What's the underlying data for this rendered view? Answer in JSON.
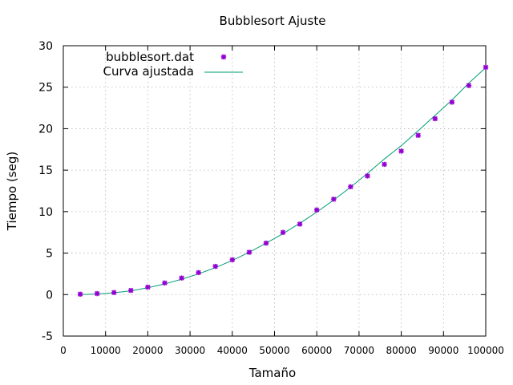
{
  "chart_data": {
    "type": "scatter",
    "title": "Bubblesort Ajuste",
    "xlabel": "Tamaño",
    "ylabel": "Tiempo (seg)",
    "xlim": [
      0,
      100000
    ],
    "ylim": [
      -5,
      30
    ],
    "xticks": [
      "0",
      "10000",
      "20000",
      "30000",
      "40000",
      "50000",
      "60000",
      "70000",
      "80000",
      "90000",
      "100000"
    ],
    "yticks": [
      "-5",
      "0",
      "5",
      "10",
      "15",
      "20",
      "25",
      "30"
    ],
    "grid": true,
    "legend_position": "top-left",
    "series": [
      {
        "name": "bubblesort.dat",
        "kind": "points",
        "color": "#9400d3",
        "x": [
          4000,
          8000,
          12000,
          16000,
          20000,
          24000,
          28000,
          32000,
          36000,
          40000,
          44000,
          48000,
          52000,
          56000,
          60000,
          64000,
          68000,
          72000,
          76000,
          80000,
          84000,
          88000,
          92000,
          96000,
          100000
        ],
        "y": [
          0.05,
          0.12,
          0.25,
          0.5,
          0.9,
          1.4,
          2.0,
          2.65,
          3.4,
          4.2,
          5.1,
          6.2,
          7.5,
          8.5,
          10.2,
          11.5,
          13.0,
          14.3,
          15.7,
          17.3,
          19.2,
          21.2,
          23.2,
          25.2,
          27.4
        ]
      },
      {
        "name": "Curva ajustada",
        "kind": "line",
        "color": "#009e73",
        "x": [
          4000,
          8000,
          12000,
          16000,
          20000,
          24000,
          28000,
          32000,
          36000,
          40000,
          44000,
          48000,
          52000,
          56000,
          60000,
          64000,
          68000,
          72000,
          76000,
          80000,
          84000,
          88000,
          92000,
          96000,
          100000
        ],
        "y": [
          0.0,
          0.07,
          0.22,
          0.45,
          0.82,
          1.28,
          1.85,
          2.5,
          3.25,
          4.12,
          5.1,
          6.2,
          7.35,
          8.6,
          9.95,
          11.4,
          12.95,
          14.6,
          16.35,
          17.95,
          19.75,
          21.6,
          23.45,
          25.5,
          27.35
        ]
      }
    ]
  }
}
